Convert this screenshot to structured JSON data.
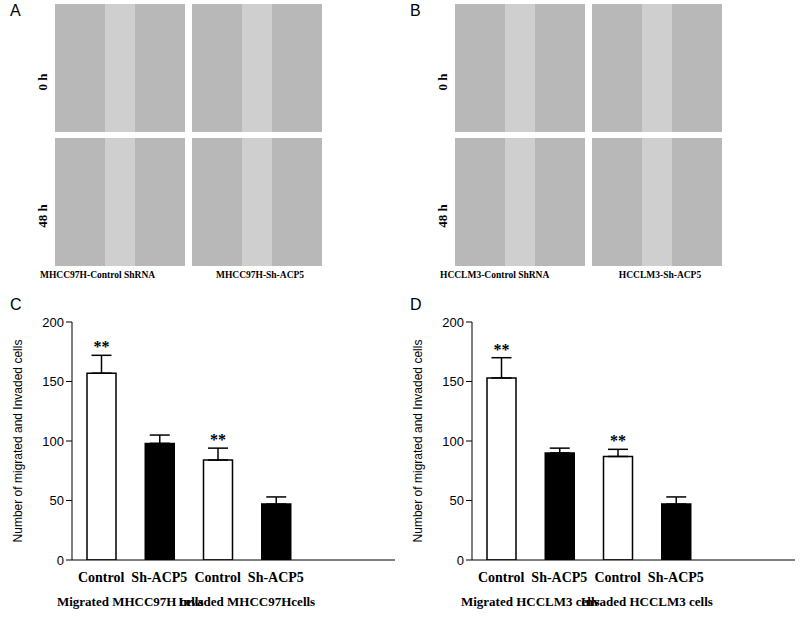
{
  "panels": [
    {
      "label": "A",
      "rows": [
        "0 h",
        "48 h"
      ],
      "captions": [
        "MHCC97H-Control ShRNA",
        "MHCC97H-Sh-ACP5"
      ]
    },
    {
      "label": "B",
      "rows": [
        "0 h",
        "48 h"
      ],
      "captions": [
        "HCCLM3-Control ShRNA",
        "HCCLM3-Sh-ACP5"
      ]
    }
  ],
  "chart_data": [
    {
      "label": "C",
      "type": "bar",
      "y_label": "Number of migrated and Invaded cells",
      "categories": [
        "Control",
        "Sh-ACP5",
        "Control",
        "Sh-ACP5"
      ],
      "groups": [
        "Migrated MHCC97H cells",
        "Invaded MHCC97Hcells"
      ],
      "values": [
        157,
        98,
        84,
        47
      ],
      "errors": [
        15,
        7,
        10,
        6
      ],
      "annotations": [
        "**",
        null,
        "**",
        null
      ],
      "colors": [
        "#ffffff",
        "#000000",
        "#ffffff",
        "#000000"
      ],
      "ylim": [
        0,
        200
      ],
      "yticks": [
        0,
        50,
        100,
        150,
        200
      ]
    },
    {
      "label": "D",
      "type": "bar",
      "y_label": "Number of migrated and Invaded cells",
      "categories": [
        "Control",
        "Sh-ACP5",
        "Control",
        "Sh-ACP5"
      ],
      "groups": [
        "Migrated HCCLM3 cells",
        "Invaded  HCCLM3 cells"
      ],
      "values": [
        153,
        90,
        87,
        47
      ],
      "errors": [
        17,
        4,
        6,
        6
      ],
      "annotations": [
        "**",
        null,
        "**",
        null
      ],
      "colors": [
        "#ffffff",
        "#000000",
        "#ffffff",
        "#000000"
      ],
      "ylim": [
        0,
        200
      ],
      "yticks": [
        0,
        50,
        100,
        150,
        200
      ]
    }
  ]
}
